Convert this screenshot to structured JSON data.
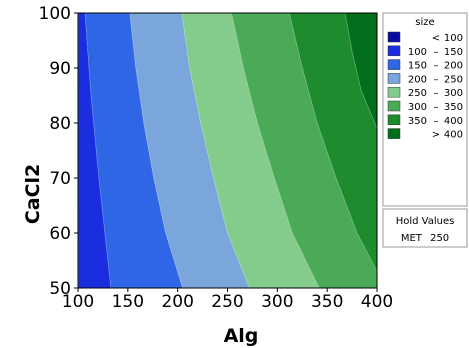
{
  "chart_data": {
    "type": "contour",
    "xlabel": "Alg",
    "ylabel": "CaCl2",
    "xlim": [
      100,
      400
    ],
    "ylim": [
      50,
      100
    ],
    "x_ticks": [
      "100",
      "150",
      "200",
      "250",
      "300",
      "350",
      "400"
    ],
    "y_ticks": [
      "50",
      "60",
      "70",
      "80",
      "90",
      "100"
    ],
    "grid": false,
    "legend_position": "right",
    "legend": {
      "title": "size",
      "levels": [
        {
          "low": "",
          "sep": "<",
          "high": "100",
          "color": "#0a0aa0"
        },
        {
          "low": "100",
          "sep": "–",
          "high": "150",
          "color": "#1a2ee0"
        },
        {
          "low": "150",
          "sep": "–",
          "high": "200",
          "color": "#2e66e6"
        },
        {
          "low": "200",
          "sep": "–",
          "high": "250",
          "color": "#7aa6dc"
        },
        {
          "low": "250",
          "sep": "–",
          "high": "300",
          "color": "#84cc8c"
        },
        {
          "low": "300",
          "sep": "–",
          "high": "350",
          "color": "#4aaa58"
        },
        {
          "low": "350",
          "sep": "–",
          "high": "400",
          "color": "#1e8c2e"
        },
        {
          "low": "",
          "sep": ">",
          "high": "400",
          "color": "#006e1a"
        }
      ]
    },
    "hold_values": {
      "title": "Hold Values",
      "entries": [
        {
          "name": "MET",
          "value": "250"
        }
      ]
    },
    "contour_boundaries": [
      {
        "level": 100,
        "points": [
          [
            100.5,
            50
          ],
          [
            100.3,
            75
          ],
          [
            100.5,
            100
          ]
        ]
      },
      {
        "level": 150,
        "points": [
          [
            133,
            50
          ],
          [
            121,
            70
          ],
          [
            113,
            85
          ],
          [
            107,
            100
          ]
        ]
      },
      {
        "level": 200,
        "points": [
          [
            205,
            50
          ],
          [
            188,
            60
          ],
          [
            176,
            70
          ],
          [
            166,
            80
          ],
          [
            158,
            90
          ],
          [
            152,
            100
          ]
        ]
      },
      {
        "level": 250,
        "points": [
          [
            272,
            50
          ],
          [
            250,
            60
          ],
          [
            236,
            70
          ],
          [
            223,
            80
          ],
          [
            212,
            90
          ],
          [
            204,
            100
          ]
        ]
      },
      {
        "level": 300,
        "points": [
          [
            342,
            50
          ],
          [
            315,
            60
          ],
          [
            297,
            70
          ],
          [
            280,
            80
          ],
          [
            266,
            90
          ],
          [
            254,
            100
          ]
        ]
      },
      {
        "level": 350,
        "points": [
          [
            400,
            53
          ],
          [
            380,
            60
          ],
          [
            359,
            70
          ],
          [
            340,
            80
          ],
          [
            325,
            90
          ],
          [
            312,
            100
          ]
        ]
      },
      {
        "level": 400,
        "points": [
          [
            400,
            79
          ],
          [
            384,
            86
          ],
          [
            375,
            93
          ],
          [
            368,
            100
          ]
        ]
      }
    ]
  }
}
